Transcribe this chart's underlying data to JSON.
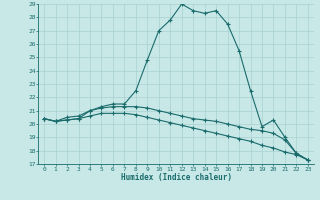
{
  "xlabel": "Humidex (Indice chaleur)",
  "background_color": "#c8e8e8",
  "line_color": "#1a6b6b",
  "grid_color": "#a8d0d0",
  "hours": [
    0,
    1,
    2,
    3,
    4,
    5,
    6,
    7,
    8,
    9,
    10,
    11,
    12,
    13,
    14,
    15,
    16,
    17,
    18,
    19,
    20,
    21,
    22,
    23
  ],
  "line1": [
    20.4,
    20.2,
    20.3,
    20.4,
    21.0,
    21.3,
    21.5,
    21.5,
    22.5,
    24.8,
    27.0,
    27.8,
    29.0,
    28.5,
    28.3,
    28.5,
    27.5,
    25.5,
    22.5,
    19.8,
    20.3,
    19.0,
    17.8,
    17.3
  ],
  "line2": [
    20.4,
    20.2,
    20.5,
    20.6,
    21.0,
    21.2,
    21.3,
    21.3,
    21.3,
    21.2,
    21.0,
    20.8,
    20.6,
    20.4,
    20.3,
    20.2,
    20.0,
    19.8,
    19.6,
    19.5,
    19.3,
    18.8,
    17.8,
    17.3
  ],
  "line3": [
    20.4,
    20.2,
    20.3,
    20.4,
    20.6,
    20.8,
    20.8,
    20.8,
    20.7,
    20.5,
    20.3,
    20.1,
    19.9,
    19.7,
    19.5,
    19.3,
    19.1,
    18.9,
    18.7,
    18.4,
    18.2,
    17.9,
    17.7,
    17.3
  ],
  "ylim": [
    17,
    29
  ],
  "xlim": [
    -0.5,
    23.5
  ],
  "yticks": [
    17,
    18,
    19,
    20,
    21,
    22,
    23,
    24,
    25,
    26,
    27,
    28,
    29
  ],
  "xticks": [
    0,
    1,
    2,
    3,
    4,
    5,
    6,
    7,
    8,
    9,
    10,
    11,
    12,
    13,
    14,
    15,
    16,
    17,
    18,
    19,
    20,
    21,
    22,
    23
  ],
  "tick_fontsize": 4.5,
  "xlabel_fontsize": 5.5,
  "marker": "+"
}
